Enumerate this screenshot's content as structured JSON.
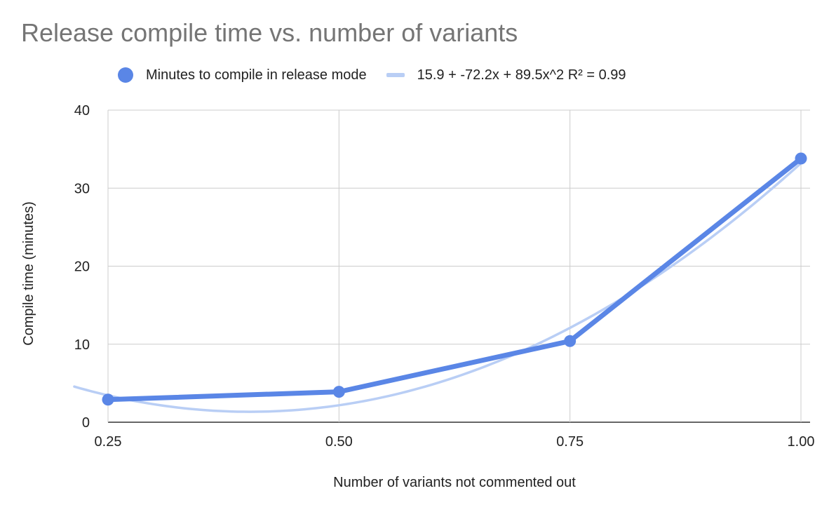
{
  "chart_data": {
    "type": "line",
    "title": "Release compile time vs. number of variants",
    "xlabel": "Number of variants not commented out",
    "ylabel": "Compile time (minutes)",
    "xlim": [
      0.25,
      1.0
    ],
    "ylim": [
      0,
      40
    ],
    "x_ticks": [
      "0.25",
      "0.50",
      "0.75",
      "1.00"
    ],
    "y_ticks": [
      "0",
      "10",
      "20",
      "30",
      "40"
    ],
    "grid": true,
    "legend_position": "top",
    "series": [
      {
        "name": "Minutes to compile in release mode",
        "x": [
          0.25,
          0.5,
          0.75,
          1.0
        ],
        "y": [
          2.9,
          3.9,
          10.4,
          33.8
        ],
        "color": "#5a86e6"
      }
    ],
    "trendline": {
      "name": "15.9 + -72.2x + 89.5x^2 R² = 0.99",
      "type": "polynomial",
      "coefficients": [
        15.9,
        -72.2,
        89.5
      ],
      "color": "#b9cef5"
    }
  }
}
